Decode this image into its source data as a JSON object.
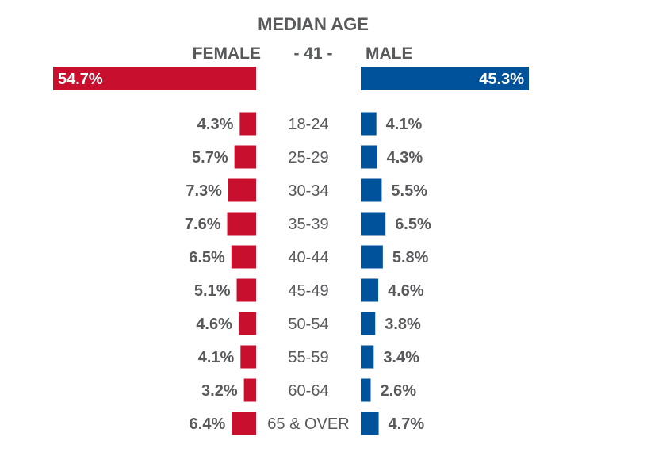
{
  "chart_data": {
    "type": "bar",
    "title": "MEDIAN AGE",
    "median_age_label": "- 41 -",
    "categories": [
      "18-24",
      "25-29",
      "30-34",
      "35-39",
      "40-44",
      "45-49",
      "50-54",
      "55-59",
      "60-64",
      "65 & OVER"
    ],
    "series": [
      {
        "name": "FEMALE",
        "color": "#c8102e",
        "total": 54.7,
        "total_label": "54.7%",
        "values": [
          4.3,
          5.7,
          7.3,
          7.6,
          6.5,
          5.1,
          4.6,
          4.1,
          3.2,
          6.4
        ],
        "labels": [
          "4.3%",
          "5.7%",
          "7.3%",
          "7.6%",
          "6.5%",
          "5.1%",
          "4.6%",
          "4.1%",
          "3.2%",
          "6.4%"
        ]
      },
      {
        "name": "MALE",
        "color": "#00529b",
        "total": 45.3,
        "total_label": "45.3%",
        "values": [
          4.1,
          4.3,
          5.5,
          6.5,
          5.8,
          4.6,
          3.8,
          3.4,
          2.6,
          4.7
        ],
        "labels": [
          "4.1%",
          "4.3%",
          "5.5%",
          "6.5%",
          "5.8%",
          "4.6%",
          "3.8%",
          "3.4%",
          "2.6%",
          "4.7%"
        ]
      }
    ],
    "grid": false,
    "legend": "top"
  }
}
